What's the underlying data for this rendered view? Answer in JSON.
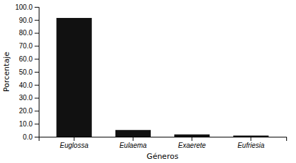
{
  "chart_data": {
    "type": "bar",
    "xlabel": "Géneros",
    "ylabel": "Porcentaje",
    "categories": [
      "Euglossa",
      "Eulaema",
      "Exaerete",
      "Eufriesia"
    ],
    "values": [
      91.5,
      5.2,
      1.8,
      0.9
    ],
    "color": "#111111",
    "ylim": [
      0,
      100
    ],
    "yticks": [
      {
        "value": 0.0,
        "label": "0.0"
      },
      {
        "value": 10.0,
        "label": "10.0"
      },
      {
        "value": 20.0,
        "label": "20.0"
      },
      {
        "value": 30.0,
        "label": "30.0"
      },
      {
        "value": 40.0,
        "label": "40.0"
      },
      {
        "value": 50.0,
        "label": "50.0"
      },
      {
        "value": 60.0,
        "label": "60.0"
      },
      {
        "value": 70.0,
        "label": "70.0"
      },
      {
        "value": 80.0,
        "label": "80.0"
      },
      {
        "value": 90.0,
        "label": "90.0"
      },
      {
        "value": 100.0,
        "label": "100.0"
      }
    ],
    "grid": false
  }
}
